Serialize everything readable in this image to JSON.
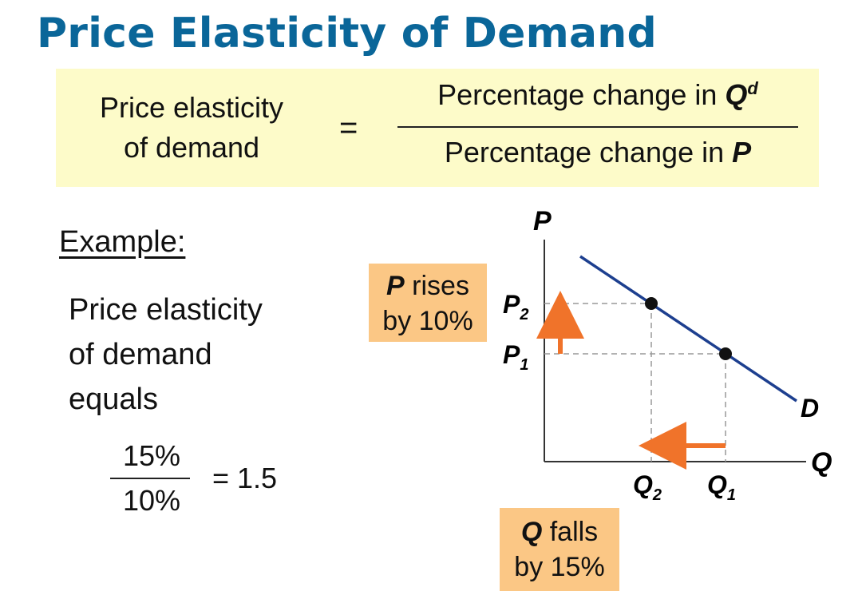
{
  "title": "Price Elasticity of Demand",
  "formula": {
    "left_line1": "Price elasticity",
    "left_line2": "of demand",
    "equals": "=",
    "numerator_text": "Percentage change in ",
    "numerator_var": "Q",
    "numerator_sup": "d",
    "denominator_text": "Percentage change in ",
    "denominator_var": "P"
  },
  "example": {
    "heading": "Example:",
    "line1": "Price elasticity",
    "line2": "of demand",
    "line3": "equals",
    "numerator": "15%",
    "denominator": "10%",
    "result": "= 1.5"
  },
  "notes": {
    "price_var": "P",
    "price_text": " rises",
    "price_line2": "by 10%",
    "quantity_var": "Q",
    "quantity_text": " falls",
    "quantity_line2": "by 15%"
  },
  "graph": {
    "y_axis": "P",
    "x_axis": "Q",
    "curve_label": "D",
    "p2": "P",
    "p2_sub": "2",
    "p1": "P",
    "p1_sub": "1",
    "q2": "Q",
    "q2_sub": "2",
    "q1": "Q",
    "q1_sub": "1"
  },
  "colors": {
    "title": "#0a6699",
    "formula_bg": "#fdfbc9",
    "note_bg": "#fbc785",
    "demand_curve": "#1d3f8f",
    "arrow": "#f0732a"
  }
}
